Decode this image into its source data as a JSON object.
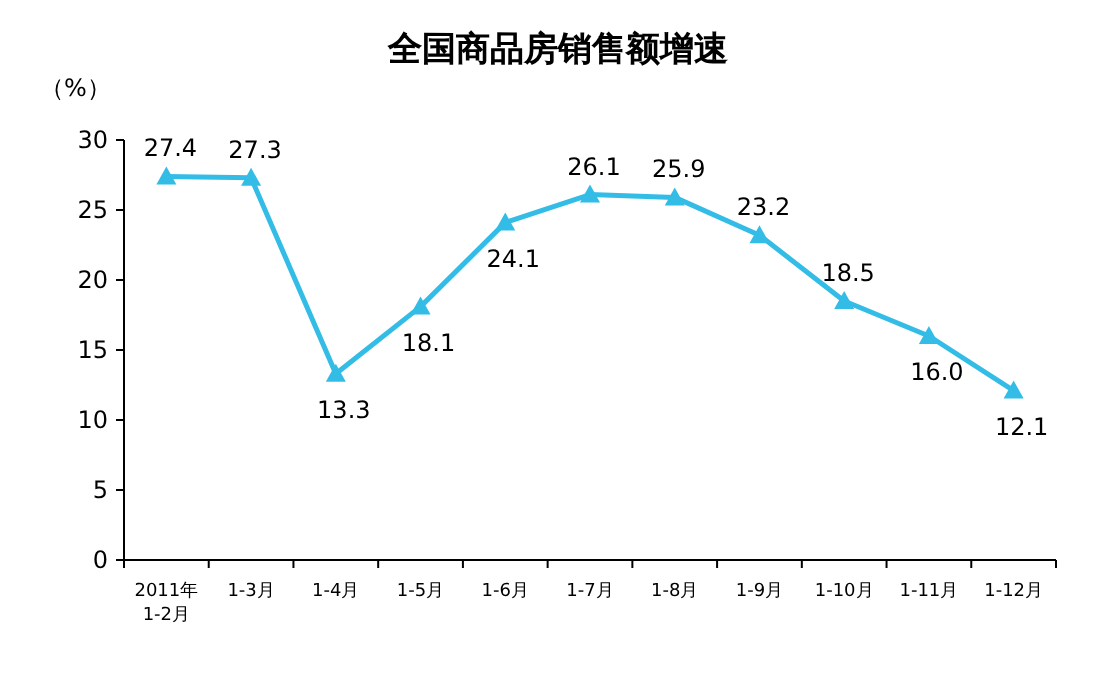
{
  "chart_data": {
    "type": "line",
    "title": "全国商品房销售额增速",
    "ylabel": "（%）",
    "categories": [
      "2011年\n1-2月",
      "1-3月",
      "1-4月",
      "1-5月",
      "1-6月",
      "1-7月",
      "1-8月",
      "1-9月",
      "1-10月",
      "1-11月",
      "1-12月"
    ],
    "series": [
      {
        "color": "#33bde6",
        "values": [
          27.4,
          27.3,
          13.3,
          18.1,
          24.1,
          26.1,
          25.9,
          23.2,
          18.5,
          16.0,
          12.1
        ],
        "value_labels": [
          "27.4",
          "27.3",
          "13.3",
          "18.1",
          "24.1",
          "26.1",
          "25.9",
          "23.2",
          "18.5",
          "16.0",
          "12.1"
        ]
      }
    ],
    "ylim": [
      0,
      30
    ],
    "yticks": [
      0,
      5,
      10,
      15,
      20,
      25,
      30
    ],
    "marker": "triangle",
    "line_style": "solid",
    "grid": false
  }
}
